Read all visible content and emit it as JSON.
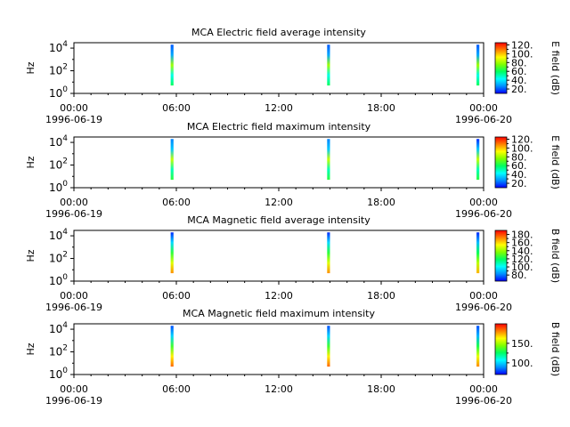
{
  "colors": {
    "colormap": [
      "#0000ff",
      "#0090ff",
      "#00ffff",
      "#00ff60",
      "#7fff00",
      "#ffff00",
      "#ff8000",
      "#ff0000"
    ]
  },
  "chart_data": [
    {
      "type": "heatmap",
      "title": "MCA  Electric field average intensity",
      "ylabel": "Hz",
      "y_scale": "log",
      "yticks": [
        "10^0",
        "10^2",
        "10^4"
      ],
      "xticks": [
        "00:00",
        "06:00",
        "12:00",
        "18:00",
        "00:00"
      ],
      "xdates": [
        "1996-06-19",
        "1996-06-20"
      ],
      "xlim": [
        "1996-06-19 00:00",
        "1996-06-20 00:00"
      ],
      "ylim": [
        1,
        30000
      ],
      "colorbar_label": "E field (dB)",
      "colorbar_range": [
        10,
        125
      ],
      "colorbar_ticks": [
        "20.",
        "40.",
        "60.",
        "80.",
        "100.",
        "120."
      ],
      "colorbar_tick_values": [
        20,
        40,
        60,
        80,
        100,
        120
      ],
      "segments": [
        {
          "start": "1996-06-19 05:40",
          "end": "1996-06-19 05:50",
          "freq_range": [
            5,
            20000
          ],
          "profile": [
            60,
            45,
            80,
            30,
            20
          ]
        },
        {
          "start": "1996-06-19 14:50",
          "end": "1996-06-19 15:00",
          "freq_range": [
            5,
            20000
          ],
          "profile": [
            60,
            45,
            80,
            30,
            20
          ]
        },
        {
          "start": "1996-06-19 23:35",
          "end": "1996-06-19 23:45",
          "freq_range": [
            5,
            20000
          ],
          "profile": [
            60,
            45,
            80,
            30,
            20
          ]
        }
      ]
    },
    {
      "type": "heatmap",
      "title": "MCA  Electric field maximum intensity",
      "ylabel": "Hz",
      "y_scale": "log",
      "yticks": [
        "10^0",
        "10^2",
        "10^4"
      ],
      "xticks": [
        "00:00",
        "06:00",
        "12:00",
        "18:00",
        "00:00"
      ],
      "xdates": [
        "1996-06-19",
        "1996-06-20"
      ],
      "xlim": [
        "1996-06-19 00:00",
        "1996-06-20 00:00"
      ],
      "ylim": [
        1,
        30000
      ],
      "colorbar_label": "E field (dB)",
      "colorbar_range": [
        10,
        125
      ],
      "colorbar_ticks": [
        "20.",
        "40.",
        "60.",
        "80.",
        "100.",
        "120."
      ],
      "colorbar_tick_values": [
        20,
        40,
        60,
        80,
        100,
        120
      ],
      "segments": [
        {
          "start": "1996-06-19 05:40",
          "end": "1996-06-19 05:50",
          "freq_range": [
            5,
            20000
          ],
          "profile": [
            65,
            50,
            85,
            35,
            25
          ]
        },
        {
          "start": "1996-06-19 14:50",
          "end": "1996-06-19 15:00",
          "freq_range": [
            5,
            20000
          ],
          "profile": [
            65,
            50,
            85,
            35,
            25
          ]
        },
        {
          "start": "1996-06-19 23:35",
          "end": "1996-06-19 23:45",
          "freq_range": [
            5,
            20000
          ],
          "profile": [
            65,
            50,
            85,
            35,
            15
          ]
        }
      ]
    },
    {
      "type": "heatmap",
      "title": "MCA  Magnetic field average intensity",
      "ylabel": "Hz",
      "y_scale": "log",
      "yticks": [
        "10^0",
        "10^2",
        "10^4"
      ],
      "xticks": [
        "00:00",
        "06:00",
        "12:00",
        "18:00",
        "00:00"
      ],
      "xdates": [
        "1996-06-19",
        "1996-06-20"
      ],
      "xlim": [
        "1996-06-19 00:00",
        "1996-06-20 00:00"
      ],
      "ylim": [
        1,
        30000
      ],
      "colorbar_label": "B field (dB)",
      "colorbar_range": [
        65,
        190
      ],
      "colorbar_ticks": [
        "80.",
        "100.",
        "120.",
        "140.",
        "160.",
        "180."
      ],
      "colorbar_tick_values": [
        80,
        100,
        120,
        140,
        160,
        180
      ],
      "segments": [
        {
          "start": "1996-06-19 05:40",
          "end": "1996-06-19 05:50",
          "freq_range": [
            5,
            20000
          ],
          "profile": [
            170,
            150,
            125,
            95,
            70
          ]
        },
        {
          "start": "1996-06-19 14:50",
          "end": "1996-06-19 15:00",
          "freq_range": [
            5,
            20000
          ],
          "profile": [
            170,
            150,
            125,
            95,
            70
          ]
        },
        {
          "start": "1996-06-19 23:35",
          "end": "1996-06-19 23:45",
          "freq_range": [
            5,
            20000
          ],
          "profile": [
            165,
            145,
            120,
            90,
            70
          ]
        }
      ]
    },
    {
      "type": "heatmap",
      "title": "MCA  Magnetic field maximum intensity",
      "ylabel": "Hz",
      "y_scale": "log",
      "yticks": [
        "10^0",
        "10^2",
        "10^4"
      ],
      "xticks": [
        "00:00",
        "06:00",
        "12:00",
        "18:00",
        "00:00"
      ],
      "xdates": [
        "1996-06-19",
        "1996-06-20"
      ],
      "xlim": [
        "1996-06-19 00:00",
        "1996-06-20 00:00"
      ],
      "ylim": [
        1,
        30000
      ],
      "colorbar_label": "B field (dB)",
      "colorbar_range": [
        70,
        200
      ],
      "colorbar_ticks": [
        "100.",
        "150."
      ],
      "colorbar_tick_values": [
        100,
        150
      ],
      "segments": [
        {
          "start": "1996-06-19 05:40",
          "end": "1996-06-19 05:50",
          "freq_range": [
            5,
            20000
          ],
          "profile": [
            185,
            165,
            135,
            100,
            80
          ]
        },
        {
          "start": "1996-06-19 14:50",
          "end": "1996-06-19 15:00",
          "freq_range": [
            5,
            20000
          ],
          "profile": [
            185,
            165,
            135,
            100,
            80
          ]
        },
        {
          "start": "1996-06-19 23:35",
          "end": "1996-06-19 23:45",
          "freq_range": [
            5,
            20000
          ],
          "profile": [
            180,
            160,
            130,
            95,
            80
          ]
        }
      ]
    }
  ]
}
